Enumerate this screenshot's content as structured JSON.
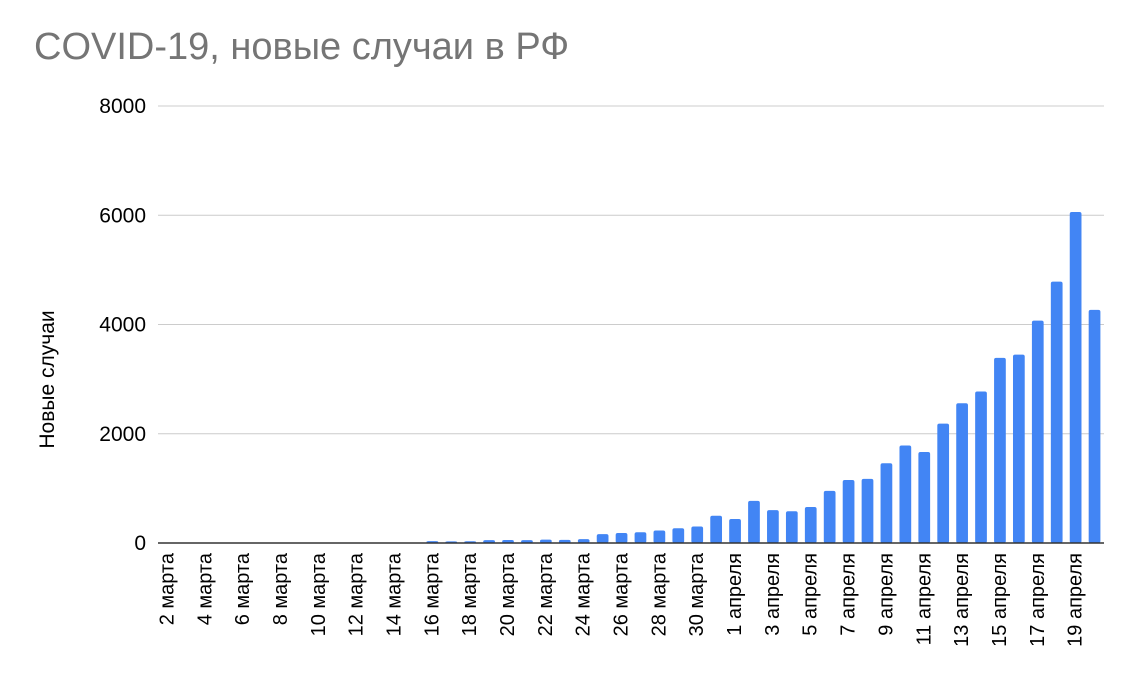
{
  "chart_data": {
    "type": "bar",
    "title": "COVID-19, новые случаи в РФ",
    "xlabel": "",
    "ylabel": "Новые случаи",
    "ylim": [
      0,
      8000
    ],
    "yticks": [
      0,
      2000,
      4000,
      6000,
      8000
    ],
    "grid": true,
    "legend": "none",
    "bar_color": "#4285f4",
    "categories": [
      "2 марта",
      "3 марта",
      "4 марта",
      "5 марта",
      "6 марта",
      "7 марта",
      "8 марта",
      "9 марта",
      "10 марта",
      "11 марта",
      "12 марта",
      "13 марта",
      "14 марта",
      "15 марта",
      "16 марта",
      "17 марта",
      "18 марта",
      "19 марта",
      "20 марта",
      "21 марта",
      "22 марта",
      "23 марта",
      "24 марта",
      "25 марта",
      "26 марта",
      "27 марта",
      "28 марта",
      "29 марта",
      "30 марта",
      "31 марта",
      "1 апреля",
      "2 апреля",
      "3 апреля",
      "4 апреля",
      "5 апреля",
      "6 апреля",
      "7 апреля",
      "8 апреля",
      "9 апреля",
      "10 апреля",
      "11 апреля",
      "12 апреля",
      "13 апреля",
      "14 апреля",
      "15 апреля",
      "16 апреля",
      "17 апреля",
      "18 апреля",
      "19 апреля",
      "20 апреля"
    ],
    "tick_labels_shown": [
      "2 марта",
      "4 марта",
      "6 марта",
      "8 марта",
      "10 марта",
      "12 марта",
      "14 марта",
      "16 марта",
      "18 марта",
      "20 марта",
      "22 марта",
      "24 марта",
      "26 марта",
      "28 марта",
      "30 марта",
      "1 апреля",
      "3 апреля",
      "5 апреля",
      "7 апреля",
      "9 апреля",
      "11 апреля",
      "13 апреля",
      "15 апреля",
      "17 апреля",
      "19 апреля"
    ],
    "values": [
      0,
      0,
      0,
      0,
      0,
      0,
      0,
      0,
      0,
      0,
      0,
      0,
      0,
      0,
      34,
      30,
      33,
      52,
      54,
      53,
      61,
      57,
      71,
      163,
      182,
      196,
      228,
      270,
      302,
      500,
      440,
      771,
      601,
      582,
      658,
      954,
      1154,
      1175,
      1459,
      1786,
      1667,
      2186,
      2558,
      2774,
      3388,
      3448,
      4070,
      4785,
      6060,
      4268
    ]
  }
}
